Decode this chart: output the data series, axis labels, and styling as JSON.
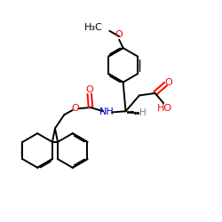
{
  "bg_color": "#ffffff",
  "atom_colors": {
    "O": "#ff0000",
    "N": "#0000cd",
    "C": "#000000",
    "H": "#808080"
  },
  "bond_color": "#000000",
  "bond_width": 1.4,
  "figsize": [
    2.5,
    2.5
  ],
  "dpi": 100,
  "xlim": [
    0,
    10
  ],
  "ylim": [
    0,
    10
  ]
}
